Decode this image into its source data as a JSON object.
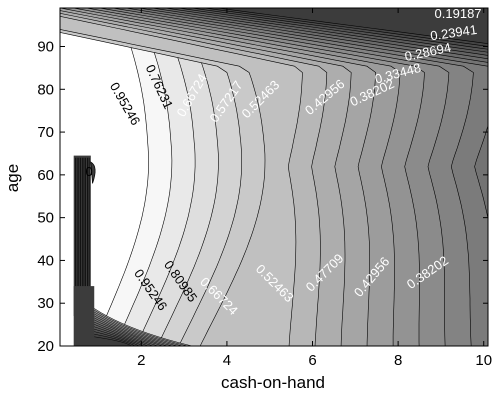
{
  "chart_data": {
    "type": "contour",
    "xlabel": "cash-on-hand",
    "ylabel": "age",
    "xlim": [
      0.1,
      10.1
    ],
    "ylim": [
      20,
      99
    ],
    "xticks": [
      2,
      4,
      6,
      8,
      10
    ],
    "yticks": [
      20,
      30,
      40,
      50,
      60,
      70,
      80,
      90
    ],
    "grid": false,
    "colors": {
      "low": "#3c3c3c",
      "high": "#f7f7f7",
      "line": "#000000"
    },
    "contour_labels": [
      {
        "text": "0.19187",
        "x": 9.4,
        "y": 97.5,
        "angle": 0,
        "color": "#ffffff"
      },
      {
        "text": "0.23941",
        "x": 9.3,
        "y": 93.0,
        "angle": -8,
        "color": "#ffffff"
      },
      {
        "text": "0.28694",
        "x": 8.7,
        "y": 88.5,
        "angle": -12,
        "color": "#ffffff"
      },
      {
        "text": "0.33448",
        "x": 8.0,
        "y": 83.5,
        "angle": -15,
        "color": "#ffffff"
      },
      {
        "text": "0.38202",
        "x": 7.4,
        "y": 79.0,
        "angle": -25,
        "color": "#ffffff"
      },
      {
        "text": "0.42956",
        "x": 6.3,
        "y": 78.0,
        "angle": -40,
        "color": "#ffffff"
      },
      {
        "text": "0.52463",
        "x": 4.8,
        "y": 77.5,
        "angle": -45,
        "color": "#ffffff"
      },
      {
        "text": "0.57217",
        "x": 4.0,
        "y": 77.0,
        "angle": -55,
        "color": "#ffffff"
      },
      {
        "text": "0.66724",
        "x": 3.2,
        "y": 78.5,
        "angle": -60,
        "color": "#ffffff"
      },
      {
        "text": "0.76231",
        "x": 2.4,
        "y": 80.5,
        "angle": 65,
        "color": "#000000"
      },
      {
        "text": "0.95246",
        "x": 1.6,
        "y": 76.5,
        "angle": 60,
        "color": "#000000"
      },
      {
        "text": "0.38202",
        "x": 8.7,
        "y": 37.0,
        "angle": -35,
        "color": "#ffffff"
      },
      {
        "text": "0.42956",
        "x": 7.4,
        "y": 36.0,
        "angle": -50,
        "color": "#ffffff"
      },
      {
        "text": "0.47709",
        "x": 6.3,
        "y": 37.0,
        "angle": -45,
        "color": "#ffffff"
      },
      {
        "text": "0.52463",
        "x": 5.1,
        "y": 34.5,
        "angle": 45,
        "color": "#ffffff"
      },
      {
        "text": "0.66724",
        "x": 3.8,
        "y": 31.5,
        "angle": 45,
        "color": "#ffffff"
      },
      {
        "text": "0.80985",
        "x": 2.9,
        "y": 35.0,
        "angle": 55,
        "color": "#000000"
      },
      {
        "text": "0.95246",
        "x": 2.2,
        "y": 33.0,
        "angle": 55,
        "color": "#000000"
      },
      {
        "text": "0",
        "x": 0.78,
        "y": 60.5,
        "angle": 0,
        "color": "#000000"
      }
    ]
  }
}
